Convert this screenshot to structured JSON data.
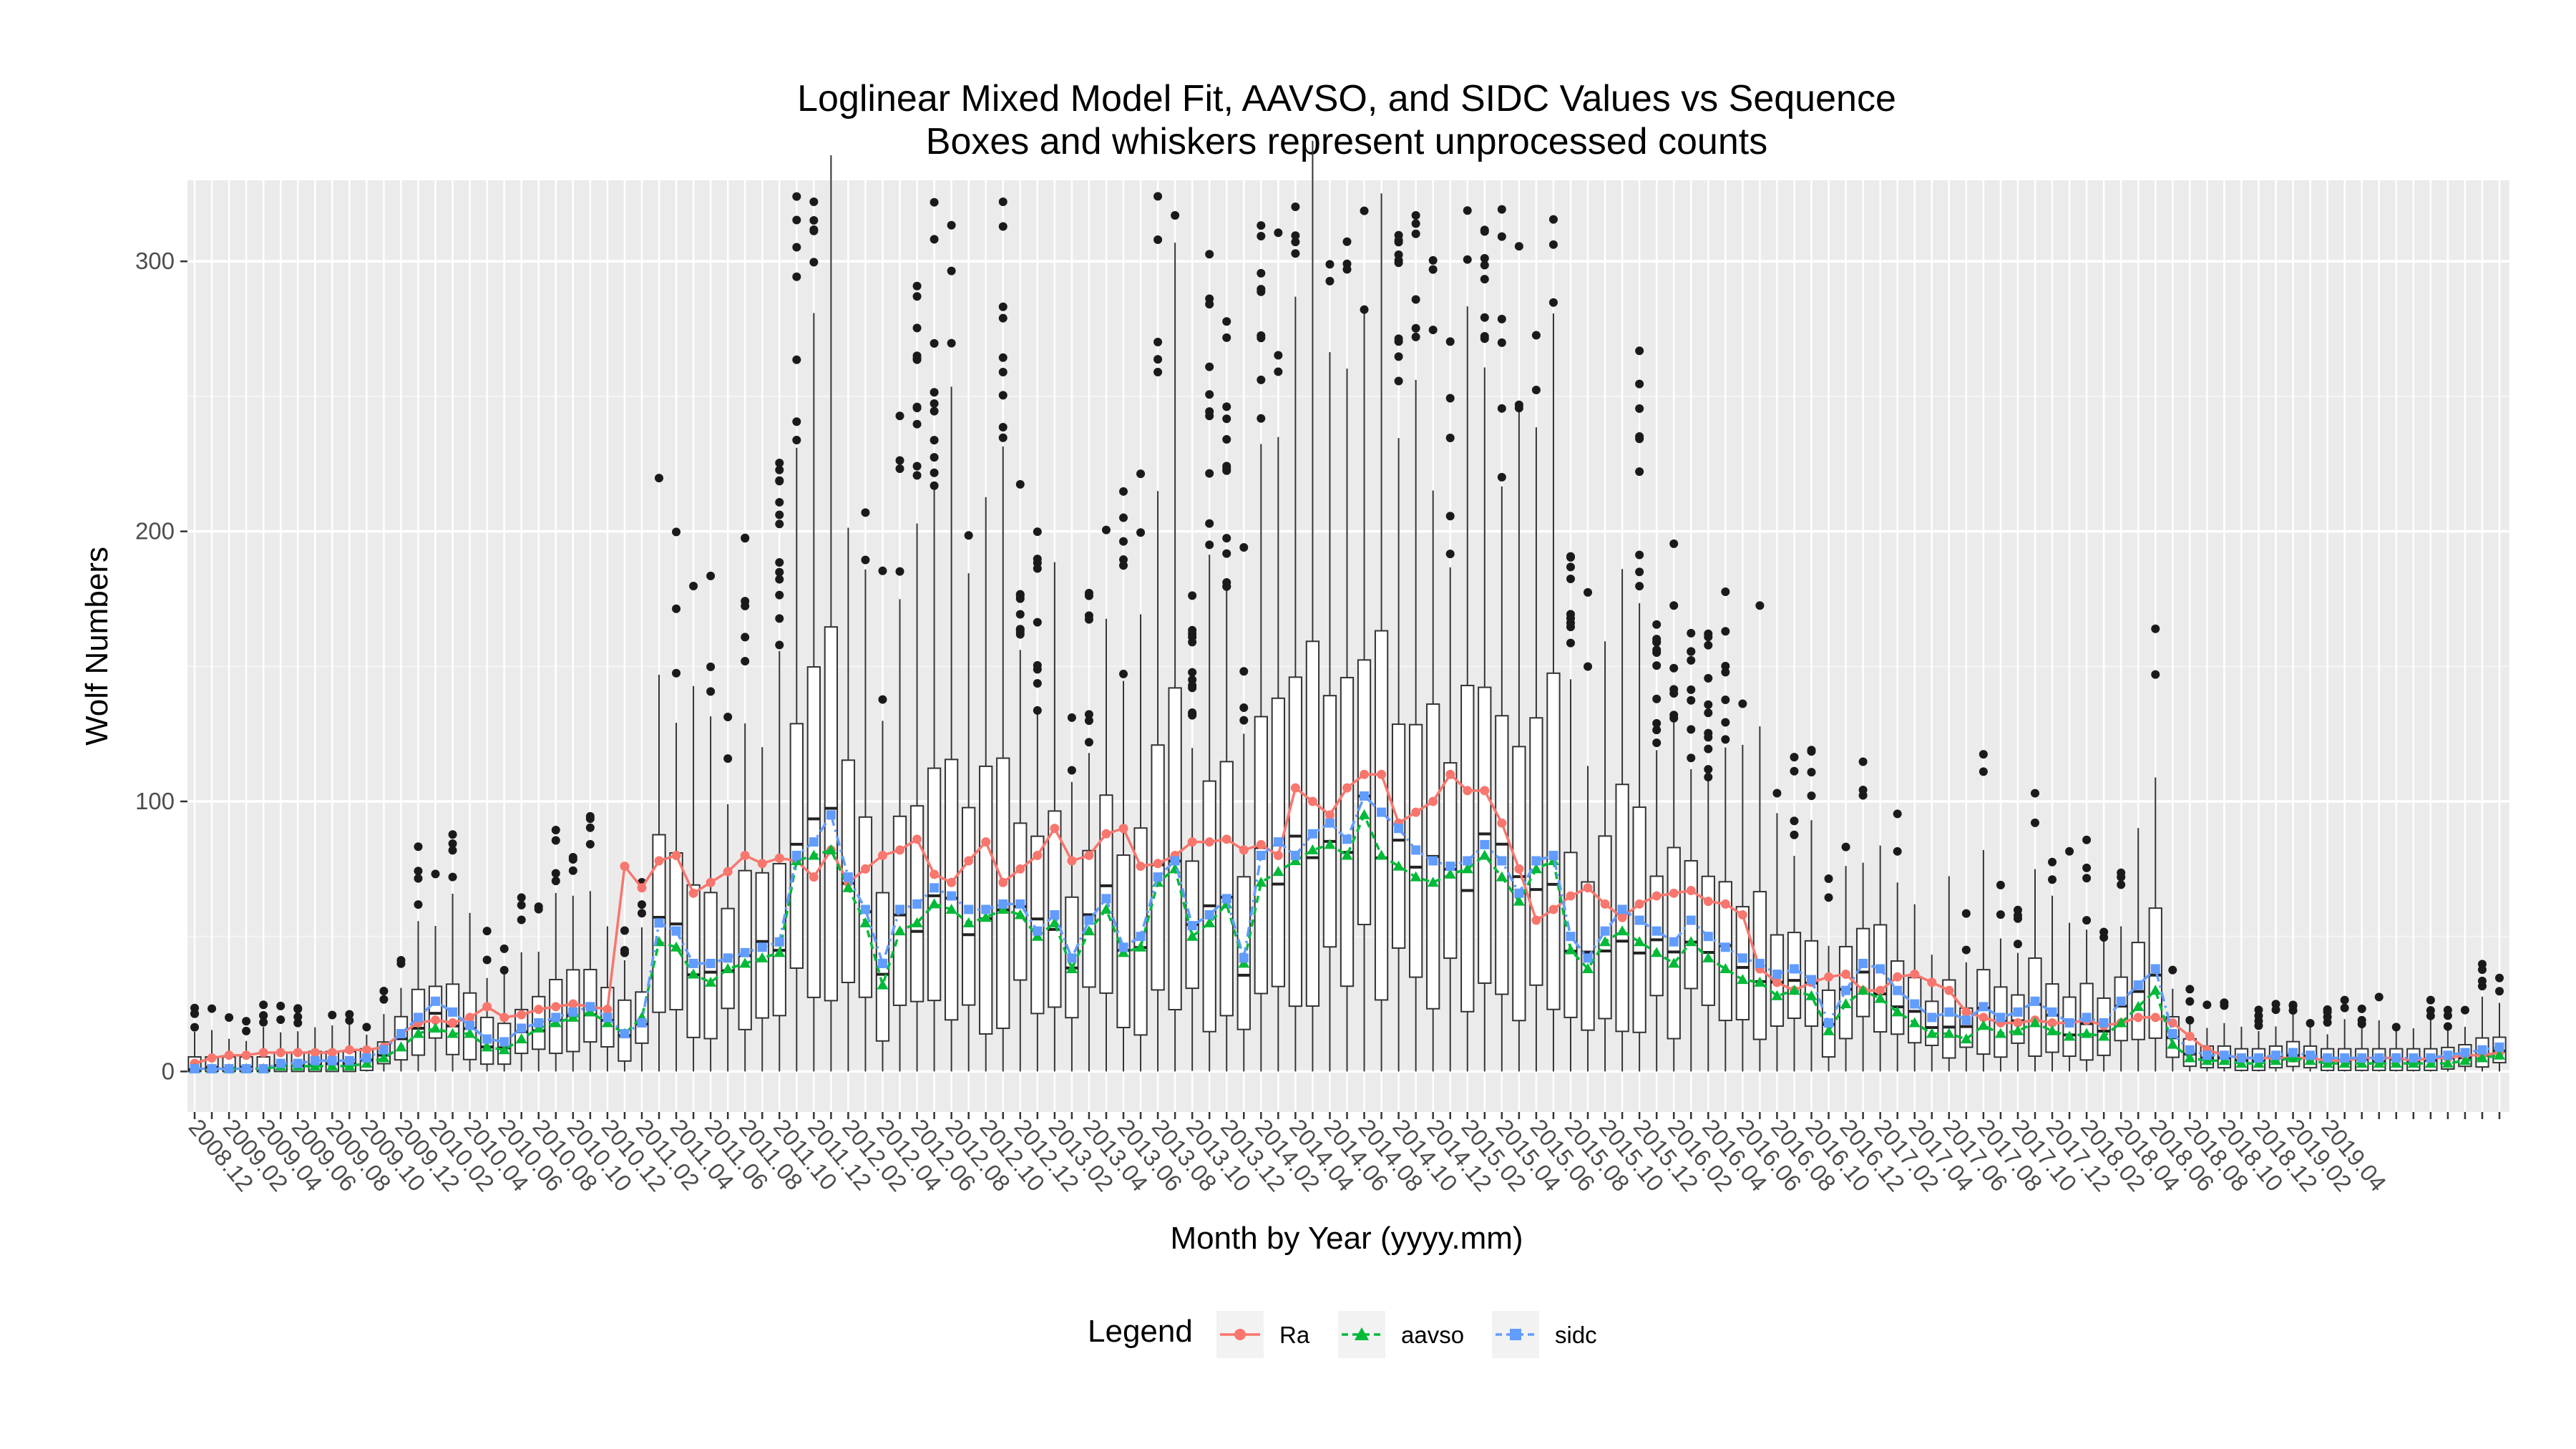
{
  "chart_data": {
    "type": "box",
    "title": "Loglinear Mixed Model Fit, AAVSO, and SIDC Values vs Sequence",
    "subtitle": "Boxes and whiskers represent unprocessed counts",
    "xlabel": "Month by Year (yyyy.mm)",
    "ylabel": "Wolf Numbers",
    "ylim": [
      -15,
      330
    ],
    "yticks": [
      0,
      100,
      200,
      300
    ],
    "grid": true,
    "legend": {
      "title": "Legend",
      "position": "bottom"
    },
    "months_start": "2008.12",
    "months_end": "2019.04",
    "x_tick_labels": [
      "2008.12",
      "2009.02",
      "2009.04",
      "2009.06",
      "2009.08",
      "2009.10",
      "2009.12",
      "2010.02",
      "2010.04",
      "2010.06",
      "2010.08",
      "2010.10",
      "2010.12",
      "2011.02",
      "2011.04",
      "2011.06",
      "2011.08",
      "2011.10",
      "2011.12",
      "2012.02",
      "2012.04",
      "2012.06",
      "2012.08",
      "2012.10",
      "2012.12",
      "2013.02",
      "2013.04",
      "2013.06",
      "2013.08",
      "2013.10",
      "2013.12",
      "2014.02",
      "2014.04",
      "2014.06",
      "2014.08",
      "2014.10",
      "2014.12",
      "2015.02",
      "2015.04",
      "2015.06",
      "2015.08",
      "2015.10",
      "2015.12",
      "2016.02",
      "2016.04",
      "2016.06",
      "2016.08",
      "2016.10",
      "2016.12",
      "2017.02",
      "2017.04",
      "2017.06",
      "2017.08",
      "2017.10",
      "2017.12",
      "2018.02",
      "2018.04",
      "2018.06",
      "2018.08",
      "2018.10",
      "2018.12",
      "2019.02",
      "2019.04"
    ],
    "series": [
      {
        "name": "Ra",
        "color": "#F8766D",
        "marker": "circle",
        "line": "solid",
        "values": [
          3,
          5,
          6,
          6,
          7,
          7,
          7,
          7,
          7,
          8,
          8,
          9,
          14,
          18,
          19,
          18,
          20,
          24,
          20,
          21,
          23,
          24,
          25,
          24,
          23,
          76,
          68,
          78,
          80,
          66,
          70,
          74,
          80,
          77,
          79,
          78,
          72,
          82,
          70,
          75,
          80,
          82,
          86,
          73,
          70,
          78,
          85,
          70,
          75,
          80,
          90,
          78,
          80,
          88,
          90,
          76,
          77,
          80,
          85,
          85,
          86,
          82,
          84,
          80,
          105,
          100,
          95,
          105,
          110,
          110,
          92,
          96,
          100,
          110,
          104,
          104,
          92,
          75,
          56,
          60,
          65,
          68,
          62,
          57,
          62,
          65,
          66,
          67,
          63,
          62,
          58,
          38,
          33,
          30,
          33,
          35,
          36,
          30,
          30,
          35,
          36,
          33,
          30,
          22,
          20,
          18,
          18,
          19,
          18,
          18,
          19,
          17,
          18,
          20,
          20,
          18,
          13,
          8,
          6,
          5,
          5,
          5,
          5,
          5,
          4,
          4,
          5,
          5,
          5,
          4,
          5,
          5,
          6,
          6,
          7
        ]
      },
      {
        "name": "aavso",
        "color": "#00BA38",
        "marker": "triangle",
        "line": "dashed",
        "values": [
          1,
          1,
          1,
          1,
          1,
          2,
          2,
          2,
          2,
          2,
          3,
          5,
          9,
          14,
          16,
          14,
          14,
          9,
          8,
          12,
          16,
          18,
          20,
          22,
          18,
          14,
          20,
          48,
          46,
          36,
          33,
          38,
          40,
          42,
          44,
          78,
          80,
          82,
          68,
          55,
          32,
          52,
          55,
          62,
          60,
          55,
          57,
          60,
          58,
          50,
          55,
          38,
          52,
          60,
          44,
          46,
          70,
          75,
          50,
          55,
          62,
          40,
          70,
          74,
          78,
          82,
          84,
          80,
          95,
          80,
          76,
          72,
          70,
          73,
          75,
          80,
          72,
          63,
          75,
          78,
          45,
          38,
          48,
          52,
          48,
          44,
          40,
          48,
          42,
          38,
          34,
          33,
          28,
          30,
          28,
          15,
          25,
          30,
          27,
          22,
          18,
          14,
          14,
          12,
          17,
          14,
          15,
          18,
          15,
          13,
          14,
          13,
          18,
          24,
          30,
          10,
          5,
          4,
          4,
          3,
          3,
          4,
          5,
          4,
          3,
          3,
          3,
          3,
          3,
          3,
          3,
          3,
          4,
          5,
          6
        ]
      },
      {
        "name": "sidc",
        "color": "#619CFF",
        "marker": "square",
        "line": "dashed",
        "values": [
          1,
          1,
          1,
          1,
          1,
          3,
          3,
          4,
          4,
          4,
          5,
          8,
          14,
          20,
          26,
          22,
          17,
          12,
          11,
          16,
          18,
          20,
          22,
          24,
          20,
          14,
          18,
          55,
          52,
          40,
          40,
          42,
          44,
          46,
          48,
          80,
          85,
          95,
          72,
          60,
          40,
          60,
          62,
          68,
          65,
          60,
          60,
          62,
          62,
          52,
          58,
          42,
          56,
          64,
          46,
          50,
          72,
          78,
          54,
          58,
          64,
          42,
          80,
          85,
          80,
          88,
          92,
          86,
          102,
          96,
          90,
          82,
          78,
          76,
          78,
          84,
          78,
          66,
          78,
          80,
          50,
          42,
          52,
          60,
          56,
          52,
          48,
          56,
          50,
          46,
          42,
          40,
          36,
          38,
          34,
          18,
          30,
          40,
          38,
          30,
          25,
          20,
          22,
          19,
          24,
          20,
          22,
          26,
          22,
          18,
          20,
          18,
          26,
          32,
          38,
          14,
          8,
          6,
          6,
          5,
          5,
          6,
          7,
          6,
          5,
          5,
          5,
          5,
          5,
          5,
          5,
          6,
          7,
          8,
          9
        ]
      }
    ],
    "box_counts_note": "Boxes and whiskers represent unprocessed counts"
  }
}
